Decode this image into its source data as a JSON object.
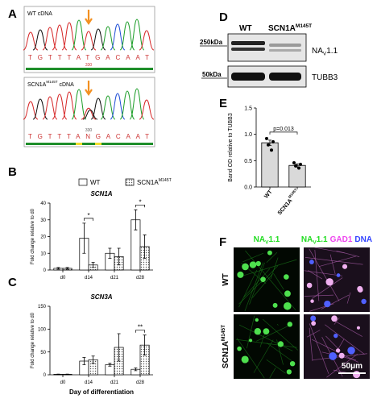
{
  "panel_labels": [
    "A",
    "B",
    "C",
    "D",
    "E",
    "F"
  ],
  "panel_a": {
    "traces": [
      {
        "label": "WT cDNA",
        "bases": "TGTTTATGACAAT",
        "position": "330"
      },
      {
        "label": "SCN1A",
        "label_superscript": "M145T",
        "label_suffix": "cDNA",
        "bases": "TGTTTANGACAAT",
        "position": "330"
      }
    ]
  },
  "panel_d": {
    "lanes": [
      {
        "name": "WT"
      },
      {
        "name": "SCN1A",
        "superscript": "M145T"
      }
    ],
    "markers": [
      "250kDa",
      "50kDa"
    ],
    "bands": [
      {
        "name": "NA",
        "subscript": "V",
        "suffix": "1.1"
      },
      {
        "name": "TUBB3"
      }
    ]
  },
  "panel_f": {
    "columns": [
      [
        {
          "text": "NA",
          "subscript": "V",
          "suffix": "1.1",
          "color": "#22dd22"
        }
      ],
      [
        {
          "text": "NA",
          "subscript": "V",
          "suffix": "1.1",
          "color": "#22dd22"
        },
        {
          "text": "GAD1",
          "color": "#ee44ee"
        },
        {
          "text": "DNA",
          "color": "#3344ff"
        }
      ]
    ],
    "rows": [
      {
        "name": "WT"
      },
      {
        "name": "SCN1A",
        "superscript": "M145T"
      }
    ],
    "scale_bar": "50μm"
  },
  "chart_data": [
    {
      "type": "bar",
      "title": "SCN1A",
      "y_label": "Fold change relative to d0",
      "categories": [
        "d0",
        "d14",
        "d21",
        "d28"
      ],
      "series": [
        {
          "name": "WT",
          "color": "#ffffff",
          "values": [
            1,
            19,
            10,
            30
          ],
          "errors": [
            0.5,
            9,
            3,
            6
          ]
        },
        {
          "name": "SCN1A",
          "name_superscript": "M145T",
          "color": "#555555",
          "hatch": "dots",
          "values": [
            1,
            3,
            8,
            14
          ],
          "errors": [
            0.5,
            1.5,
            5,
            7
          ]
        }
      ],
      "ylim": [
        0,
        40
      ],
      "yticks": [
        0,
        10,
        20,
        30,
        40
      ],
      "annotations": [
        {
          "category": "d14",
          "text": "*"
        },
        {
          "category": "d28",
          "text": "*"
        }
      ]
    },
    {
      "type": "bar",
      "title": "SCN3A",
      "x_label": "Day of differentiation",
      "y_label": "Fold change relative to d0",
      "categories": [
        "d0",
        "d14",
        "d21",
        "d28"
      ],
      "series": [
        {
          "color": "#ffffff",
          "values": [
            1,
            30,
            22,
            12
          ],
          "errors": [
            0.5,
            8,
            3,
            3
          ]
        },
        {
          "color": "#555555",
          "hatch": "dots",
          "values": [
            1,
            33,
            60,
            65
          ],
          "errors": [
            0.5,
            8,
            30,
            22
          ]
        }
      ],
      "ylim": [
        0,
        150
      ],
      "yticks": [
        0,
        50,
        100,
        150
      ],
      "annotations": [
        {
          "category": "d28",
          "text": "**"
        }
      ]
    },
    {
      "type": "bar",
      "y_label": "Band OD relative to TUBB3",
      "categories": [
        "WT",
        "SCN1A"
      ],
      "category_superscripts": [
        null,
        "M145T"
      ],
      "values": [
        0.84,
        0.41
      ],
      "errors": [
        0.05,
        0.03
      ],
      "points": [
        [
          0.92,
          0.86,
          0.8,
          0.7
        ],
        [
          0.46,
          0.43,
          0.4,
          0.36
        ]
      ],
      "color": "#d9d9d9",
      "ylim": [
        0,
        1.5
      ],
      "yticks": [
        {
          "value": 0,
          "label": "0.0"
        },
        0.5,
        {
          "value": 1,
          "label": "1.0"
        },
        1.5
      ],
      "annotations": [
        {
          "text": "p=0.013"
        }
      ]
    }
  ]
}
